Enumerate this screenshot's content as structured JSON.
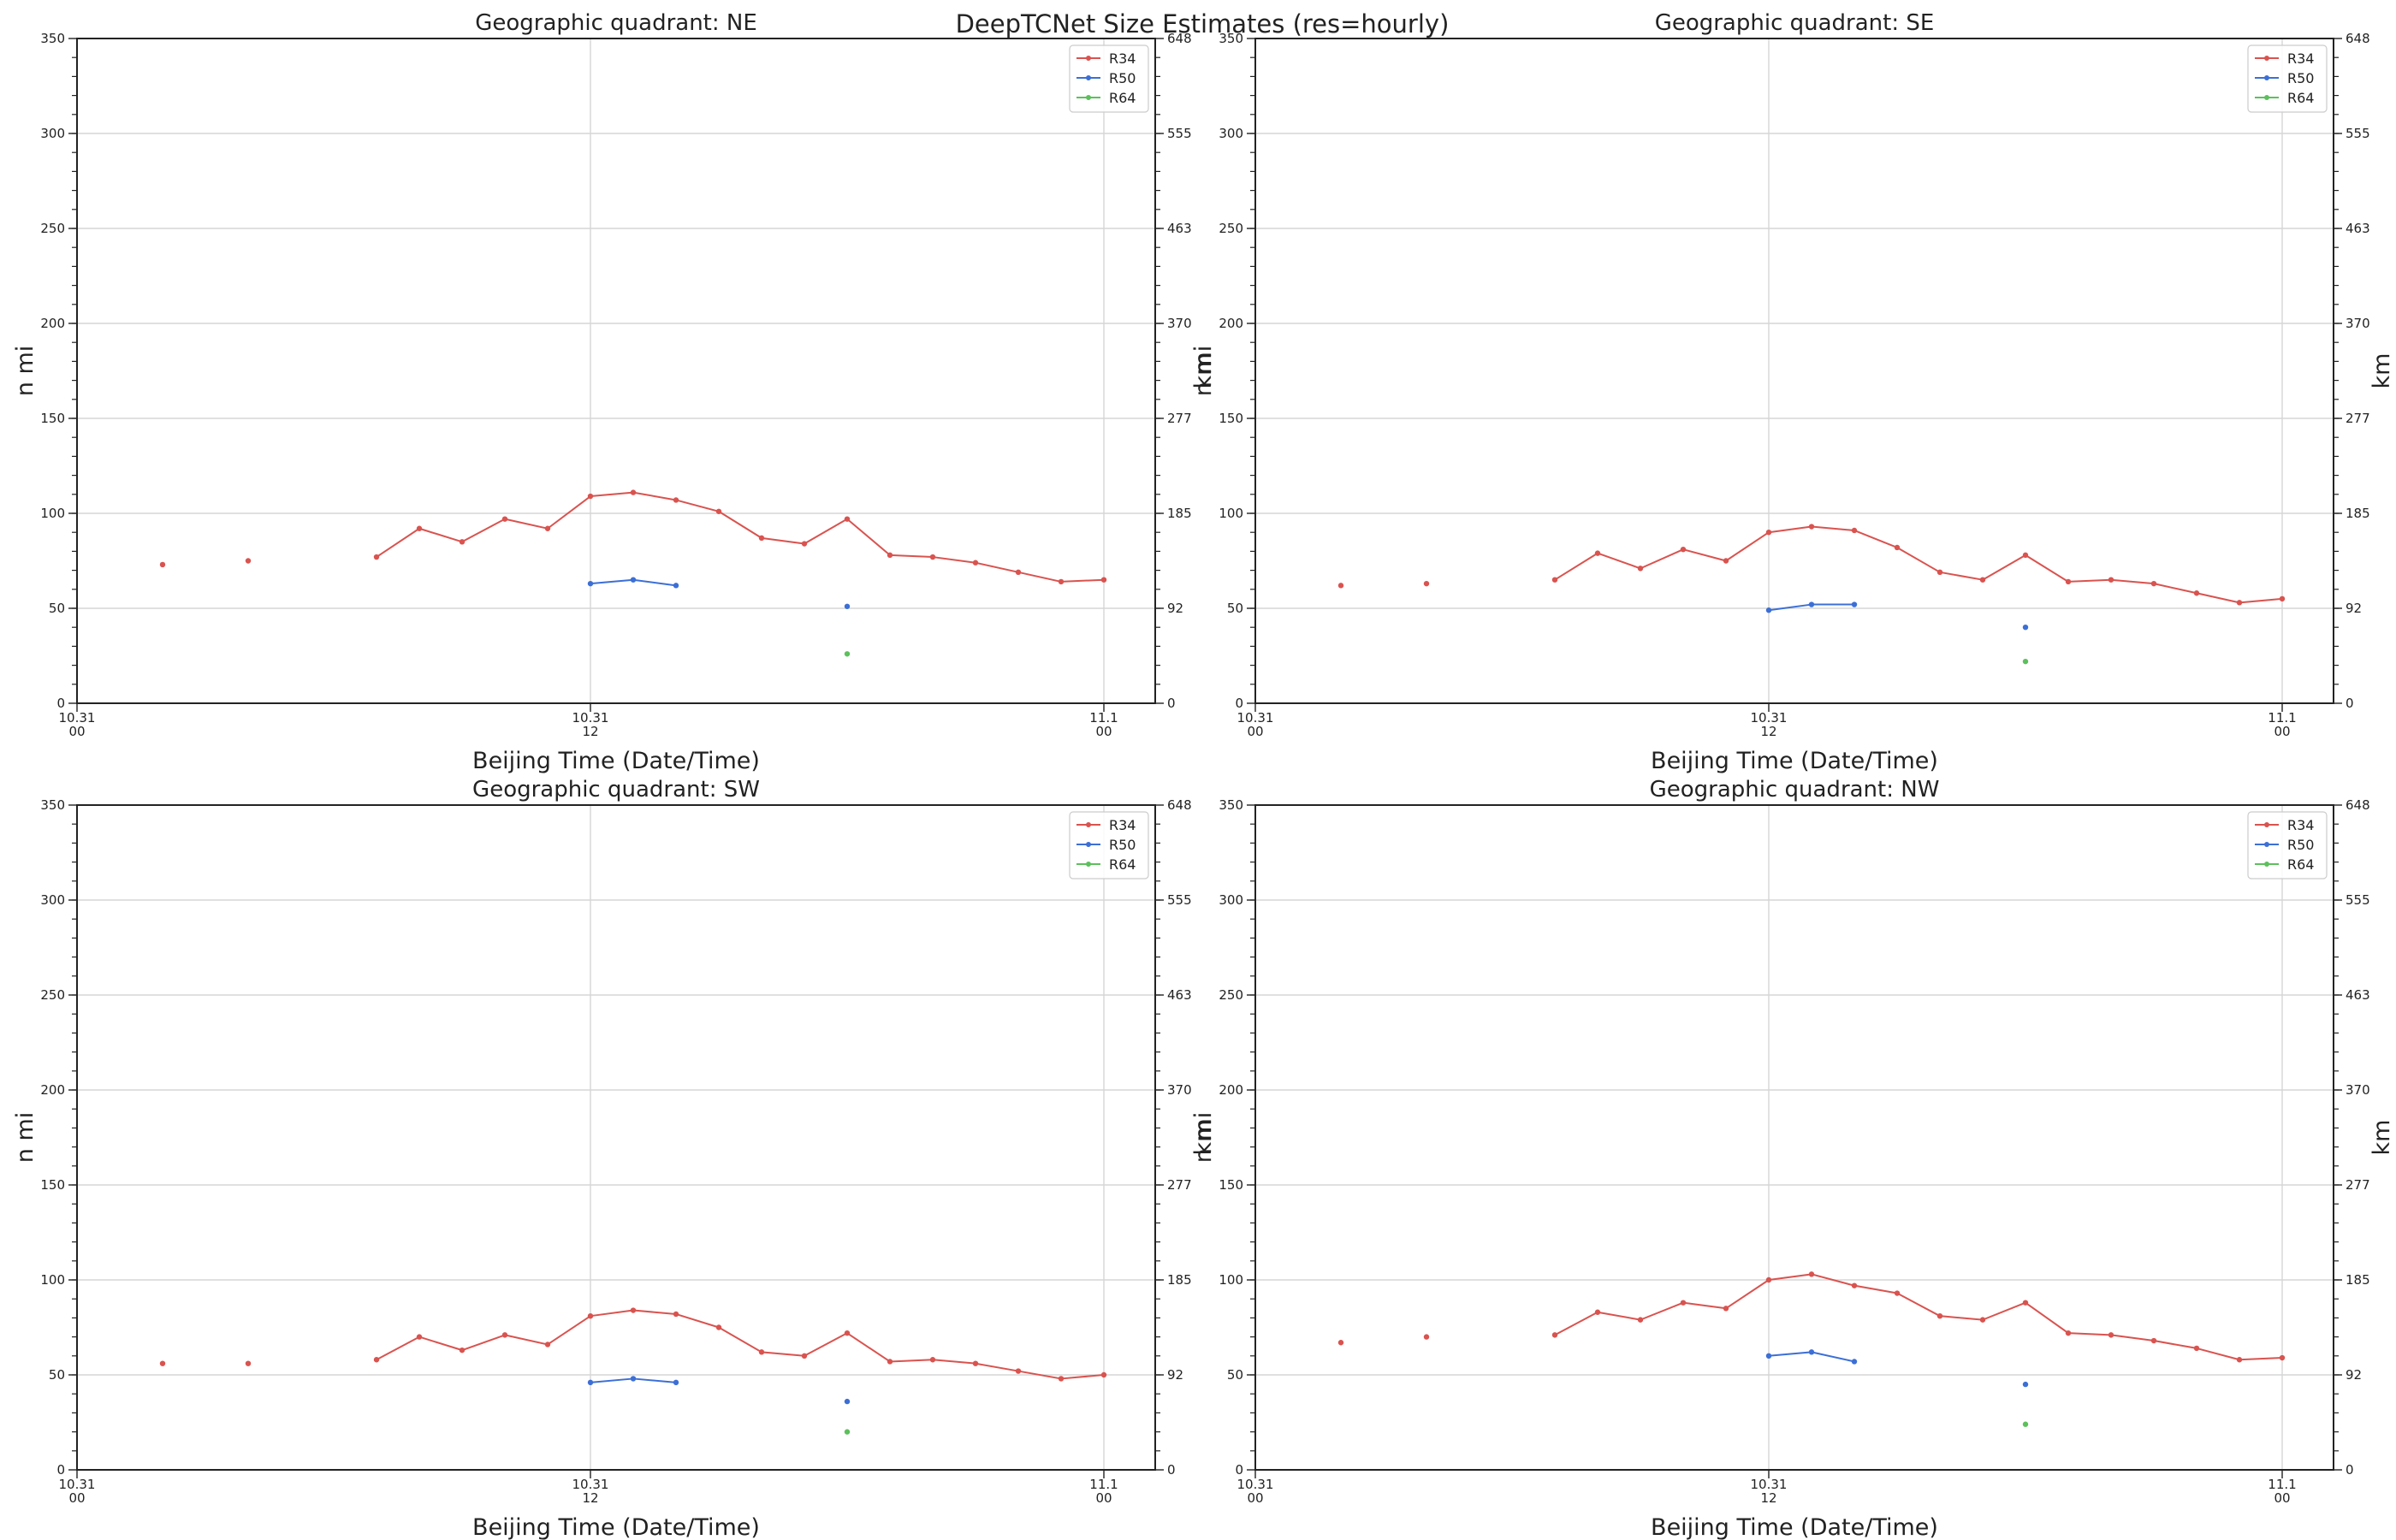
{
  "figure": {
    "suptitle": "DeepTCNet Size Estimates (res=hourly)"
  },
  "chart_data": [
    {
      "type": "line",
      "title": "Geographic quadrant: NE",
      "xlabel": "Beijing Time (Date/Time)",
      "ylabel": "n mi",
      "ylabel_right": "km",
      "xlim": [
        0,
        25.2
      ],
      "ylim": [
        0,
        350
      ],
      "x_ticks": [
        {
          "x": 0,
          "l1": "10.31",
          "l2": "00"
        },
        {
          "x": 12,
          "l1": "10.31",
          "l2": "12"
        },
        {
          "x": 24,
          "l1": "11.1",
          "l2": "00"
        }
      ],
      "y_ticks": [
        0,
        50,
        100,
        150,
        200,
        250,
        300,
        350
      ],
      "y_ticks_right": [
        "0",
        "92",
        "185",
        "277",
        "370",
        "463",
        "555",
        "648"
      ],
      "grid": true,
      "legend_position": "top-right",
      "series": [
        {
          "name": "R34",
          "color": "#d9534f",
          "points": [
            [
              2,
              73
            ],
            [
              4,
              75
            ],
            [
              7,
              77
            ],
            [
              8,
              92
            ],
            [
              9,
              85
            ],
            [
              10,
              97
            ],
            [
              11,
              92
            ],
            [
              12,
              109
            ],
            [
              13,
              111
            ],
            [
              14,
              107
            ],
            [
              15,
              101
            ],
            [
              16,
              87
            ],
            [
              17,
              84
            ],
            [
              18,
              97
            ],
            [
              19,
              78
            ],
            [
              20,
              77
            ],
            [
              21,
              74
            ],
            [
              22,
              69
            ],
            [
              23,
              64
            ],
            [
              24,
              65
            ]
          ]
        },
        {
          "name": "R50",
          "color": "#3c6fd6",
          "points": [
            [
              12,
              63
            ],
            [
              13,
              65
            ],
            [
              14,
              62
            ],
            [
              18,
              51
            ]
          ]
        },
        {
          "name": "R64",
          "color": "#5cc05c",
          "points": [
            [
              18,
              26
            ]
          ]
        }
      ]
    },
    {
      "type": "line",
      "title": "Geographic quadrant: SE",
      "xlabel": "Beijing Time (Date/Time)",
      "ylabel": "n mi",
      "ylabel_right": "km",
      "xlim": [
        0,
        25.2
      ],
      "ylim": [
        0,
        350
      ],
      "x_ticks": [
        {
          "x": 0,
          "l1": "10.31",
          "l2": "00"
        },
        {
          "x": 12,
          "l1": "10.31",
          "l2": "12"
        },
        {
          "x": 24,
          "l1": "11.1",
          "l2": "00"
        }
      ],
      "y_ticks": [
        0,
        50,
        100,
        150,
        200,
        250,
        300,
        350
      ],
      "y_ticks_right": [
        "0",
        "92",
        "185",
        "277",
        "370",
        "463",
        "555",
        "648"
      ],
      "grid": true,
      "legend_position": "top-right",
      "series": [
        {
          "name": "R34",
          "color": "#d9534f",
          "points": [
            [
              2,
              62
            ],
            [
              4,
              63
            ],
            [
              7,
              65
            ],
            [
              8,
              79
            ],
            [
              9,
              71
            ],
            [
              10,
              81
            ],
            [
              11,
              75
            ],
            [
              12,
              90
            ],
            [
              13,
              93
            ],
            [
              14,
              91
            ],
            [
              15,
              82
            ],
            [
              16,
              69
            ],
            [
              17,
              65
            ],
            [
              18,
              78
            ],
            [
              19,
              64
            ],
            [
              20,
              65
            ],
            [
              21,
              63
            ],
            [
              22,
              58
            ],
            [
              23,
              53
            ],
            [
              24,
              55
            ]
          ]
        },
        {
          "name": "R50",
          "color": "#3c6fd6",
          "points": [
            [
              12,
              49
            ],
            [
              13,
              52
            ],
            [
              14,
              52
            ],
            [
              18,
              40
            ]
          ]
        },
        {
          "name": "R64",
          "color": "#5cc05c",
          "points": [
            [
              18,
              22
            ]
          ]
        }
      ]
    },
    {
      "type": "line",
      "title": "Geographic quadrant: SW",
      "xlabel": "Beijing Time (Date/Time)",
      "ylabel": "n mi",
      "ylabel_right": "km",
      "xlim": [
        0,
        25.2
      ],
      "ylim": [
        0,
        350
      ],
      "x_ticks": [
        {
          "x": 0,
          "l1": "10.31",
          "l2": "00"
        },
        {
          "x": 12,
          "l1": "10.31",
          "l2": "12"
        },
        {
          "x": 24,
          "l1": "11.1",
          "l2": "00"
        }
      ],
      "y_ticks": [
        0,
        50,
        100,
        150,
        200,
        250,
        300,
        350
      ],
      "y_ticks_right": [
        "0",
        "92",
        "185",
        "277",
        "370",
        "463",
        "555",
        "648"
      ],
      "grid": true,
      "legend_position": "top-right",
      "series": [
        {
          "name": "R34",
          "color": "#d9534f",
          "points": [
            [
              2,
              56
            ],
            [
              4,
              56
            ],
            [
              7,
              58
            ],
            [
              8,
              70
            ],
            [
              9,
              63
            ],
            [
              10,
              71
            ],
            [
              11,
              66
            ],
            [
              12,
              81
            ],
            [
              13,
              84
            ],
            [
              14,
              82
            ],
            [
              15,
              75
            ],
            [
              16,
              62
            ],
            [
              17,
              60
            ],
            [
              18,
              72
            ],
            [
              19,
              57
            ],
            [
              20,
              58
            ],
            [
              21,
              56
            ],
            [
              22,
              52
            ],
            [
              23,
              48
            ],
            [
              24,
              50
            ]
          ]
        },
        {
          "name": "R50",
          "color": "#3c6fd6",
          "points": [
            [
              12,
              46
            ],
            [
              13,
              48
            ],
            [
              14,
              46
            ],
            [
              18,
              36
            ]
          ]
        },
        {
          "name": "R64",
          "color": "#5cc05c",
          "points": [
            [
              18,
              20
            ]
          ]
        }
      ]
    },
    {
      "type": "line",
      "title": "Geographic quadrant: NW",
      "xlabel": "Beijing Time (Date/Time)",
      "ylabel": "n mi",
      "ylabel_right": "km",
      "xlim": [
        0,
        25.2
      ],
      "ylim": [
        0,
        350
      ],
      "x_ticks": [
        {
          "x": 0,
          "l1": "10.31",
          "l2": "00"
        },
        {
          "x": 12,
          "l1": "10.31",
          "l2": "12"
        },
        {
          "x": 24,
          "l1": "11.1",
          "l2": "00"
        }
      ],
      "y_ticks": [
        0,
        50,
        100,
        150,
        200,
        250,
        300,
        350
      ],
      "y_ticks_right": [
        "0",
        "92",
        "185",
        "277",
        "370",
        "463",
        "555",
        "648"
      ],
      "grid": true,
      "legend_position": "top-right",
      "series": [
        {
          "name": "R34",
          "color": "#d9534f",
          "points": [
            [
              2,
              67
            ],
            [
              4,
              70
            ],
            [
              7,
              71
            ],
            [
              8,
              83
            ],
            [
              9,
              79
            ],
            [
              10,
              88
            ],
            [
              11,
              85
            ],
            [
              12,
              100
            ],
            [
              13,
              103
            ],
            [
              14,
              97
            ],
            [
              15,
              93
            ],
            [
              16,
              81
            ],
            [
              17,
              79
            ],
            [
              18,
              88
            ],
            [
              19,
              72
            ],
            [
              20,
              71
            ],
            [
              21,
              68
            ],
            [
              22,
              64
            ],
            [
              23,
              58
            ],
            [
              24,
              59
            ]
          ]
        },
        {
          "name": "R50",
          "color": "#3c6fd6",
          "points": [
            [
              12,
              60
            ],
            [
              13,
              62
            ],
            [
              14,
              57
            ],
            [
              18,
              45
            ]
          ]
        },
        {
          "name": "R64",
          "color": "#5cc05c",
          "points": [
            [
              18,
              24
            ]
          ]
        }
      ]
    }
  ]
}
